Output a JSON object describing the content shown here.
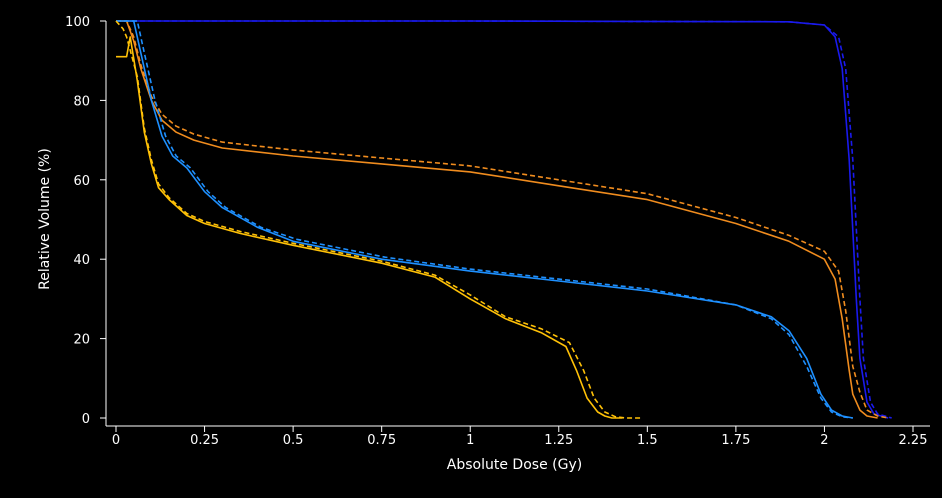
{
  "chart_data": {
    "type": "line",
    "title": "",
    "xlabel": "Absolute Dose (Gy)",
    "ylabel": "Relative Volume (%)",
    "xlim": [
      0,
      2.25
    ],
    "ylim": [
      0,
      100
    ],
    "xticks": [
      0,
      0.25,
      0.5,
      0.75,
      1,
      1.25,
      1.5,
      1.75,
      2,
      2.25
    ],
    "xtick_labels": [
      "0",
      "0.25",
      "0.5",
      "0.75",
      "1",
      "1.25",
      "1.5",
      "1.75",
      "2",
      "2.25"
    ],
    "yticks": [
      0,
      20,
      40,
      60,
      80,
      100
    ],
    "ytick_labels": [
      "0",
      "20",
      "40",
      "60",
      "80",
      "100"
    ],
    "grid": false,
    "legend": "none",
    "background_color": "#000000",
    "axis_color": "#ffffff",
    "series": [
      {
        "color": "#1a1aee",
        "style": "solid",
        "x": [
          0,
          0.05,
          1.0,
          1.9,
          2.0,
          2.03,
          2.05,
          2.07,
          2.09,
          2.1,
          2.12,
          2.14,
          2.18
        ],
        "y": [
          100,
          100,
          100,
          99.8,
          99,
          96,
          88,
          65,
          30,
          15,
          4,
          1,
          0
        ]
      },
      {
        "color": "#1a1aee",
        "style": "dashed",
        "x": [
          0,
          0.06,
          1.0,
          1.9,
          2.0,
          2.04,
          2.06,
          2.08,
          2.1,
          2.11,
          2.13,
          2.15,
          2.19
        ],
        "y": [
          100,
          100,
          100,
          99.8,
          99,
          96,
          88,
          65,
          30,
          15,
          4,
          1,
          0
        ]
      },
      {
        "color": "#f08c1e",
        "style": "solid",
        "x": [
          0,
          0.03,
          0.05,
          0.07,
          0.1,
          0.13,
          0.17,
          0.22,
          0.3,
          0.5,
          0.75,
          1.0,
          1.25,
          1.5,
          1.75,
          1.9,
          2.0,
          2.03,
          2.05,
          2.07,
          2.08,
          2.1,
          2.12,
          2.15
        ],
        "y": [
          100,
          100,
          95,
          88,
          80,
          75,
          72,
          70,
          68,
          66,
          64,
          62,
          58.5,
          55,
          49,
          44.5,
          40,
          35,
          25,
          12,
          6,
          2,
          0.5,
          0
        ]
      },
      {
        "color": "#f08c1e",
        "style": "dashed",
        "x": [
          0,
          0.03,
          0.05,
          0.07,
          0.1,
          0.13,
          0.17,
          0.22,
          0.3,
          0.5,
          0.75,
          1.0,
          1.25,
          1.5,
          1.75,
          1.9,
          2.0,
          2.04,
          2.06,
          2.08,
          2.1,
          2.12,
          2.15,
          2.18
        ],
        "y": [
          100,
          100,
          96,
          89,
          81,
          76.5,
          73.5,
          71.5,
          69.5,
          67.5,
          65.5,
          63.5,
          60,
          56.5,
          50.5,
          46,
          42,
          37,
          27,
          13,
          6.5,
          2,
          0.5,
          0
        ]
      },
      {
        "color": "#1e90ff",
        "style": "solid",
        "x": [
          0,
          0.05,
          0.07,
          0.1,
          0.13,
          0.16,
          0.2,
          0.25,
          0.3,
          0.4,
          0.5,
          0.75,
          1.0,
          1.25,
          1.5,
          1.75,
          1.85,
          1.9,
          1.95,
          1.99,
          2.02,
          2.05,
          2.08
        ],
        "y": [
          100,
          100,
          92,
          80,
          71,
          66,
          63,
          57,
          53,
          48,
          44.5,
          40,
          37,
          34.5,
          32,
          28.5,
          25.5,
          22,
          15,
          6,
          2,
          0.5,
          0
        ]
      },
      {
        "color": "#1e90ff",
        "style": "dashed",
        "x": [
          0,
          0.06,
          0.08,
          0.11,
          0.14,
          0.17,
          0.21,
          0.26,
          0.31,
          0.41,
          0.51,
          0.76,
          1.0,
          1.25,
          1.5,
          1.75,
          1.85,
          1.9,
          1.95,
          1.99,
          2.02,
          2.05,
          2.08
        ],
        "y": [
          100,
          100,
          92,
          80,
          71,
          66,
          63,
          57,
          53,
          48,
          45,
          40.5,
          37.5,
          35,
          32.5,
          28.5,
          25,
          21,
          13,
          5,
          1.5,
          0.3,
          0
        ]
      },
      {
        "color": "#ffc107",
        "style": "solid",
        "x": [
          0,
          0.03,
          0.04,
          0.06,
          0.08,
          0.1,
          0.12,
          0.15,
          0.2,
          0.25,
          0.35,
          0.5,
          0.75,
          0.9,
          1.0,
          1.1,
          1.2,
          1.27,
          1.3,
          1.33,
          1.36,
          1.38,
          1.4,
          1.43
        ],
        "y": [
          91,
          91,
          96,
          85,
          72,
          64,
          58,
          55,
          51,
          49,
          46.5,
          43.5,
          39,
          35.5,
          30,
          25,
          21.5,
          18,
          12,
          5,
          1.5,
          0.5,
          0,
          0
        ]
      },
      {
        "color": "#ffc107",
        "style": "dashed",
        "x": [
          0,
          0.02,
          0.03,
          0.06,
          0.08,
          0.1,
          0.12,
          0.15,
          0.2,
          0.25,
          0.35,
          0.5,
          0.75,
          0.9,
          1.0,
          1.1,
          1.2,
          1.28,
          1.32,
          1.35,
          1.38,
          1.41,
          1.44,
          1.48
        ],
        "y": [
          100,
          98,
          96,
          86,
          73,
          65,
          59,
          55.5,
          51.5,
          49.5,
          47,
          44,
          39.5,
          36,
          31,
          25.5,
          22.5,
          19,
          12,
          5,
          1.5,
          0.3,
          0,
          0
        ]
      }
    ]
  }
}
